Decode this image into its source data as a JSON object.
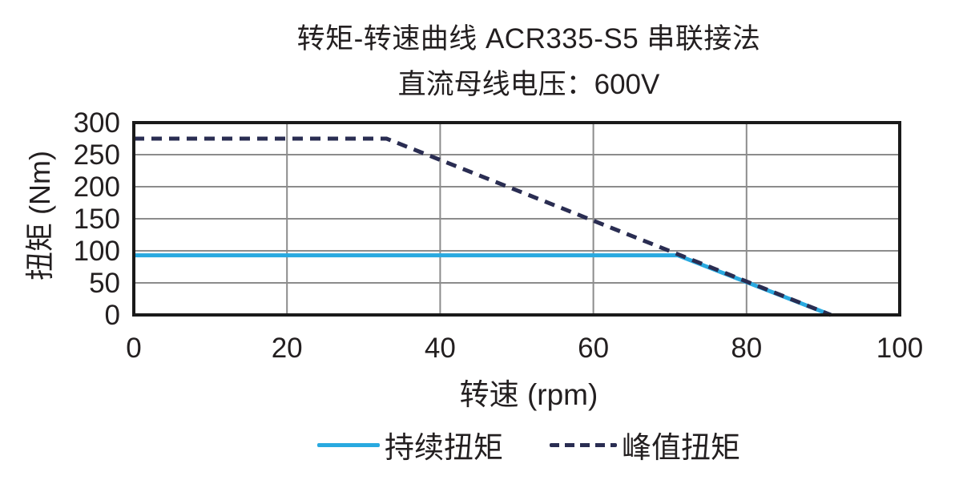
{
  "chart_data": {
    "type": "line",
    "title": "转矩-转速曲线 ACR335-S5 串联接法",
    "subtitle": "直流母线电压：600V",
    "xlabel": "转速 (rpm)",
    "ylabel": "扭矩 (Nm)",
    "xlim": [
      0,
      100
    ],
    "ylim": [
      0,
      300
    ],
    "x_ticks": [
      0,
      20,
      40,
      60,
      80,
      100
    ],
    "y_ticks": [
      0,
      50,
      100,
      150,
      200,
      250,
      300
    ],
    "grid": true,
    "legend_position": "bottom",
    "series": [
      {
        "name": "持续扭矩",
        "style": "solid",
        "color": "#29A9E0",
        "points": [
          [
            0,
            93
          ],
          [
            71,
            93
          ],
          [
            91,
            0
          ]
        ]
      },
      {
        "name": "峰值扭矩",
        "style": "dashed",
        "color": "#2A2D52",
        "points": [
          [
            0,
            275
          ],
          [
            33,
            275
          ],
          [
            91,
            0
          ]
        ]
      }
    ]
  },
  "colors": {
    "background": "#FFFFFF",
    "text": "#231F20",
    "grid": "#8C8C8C",
    "axis": "#1A1A1A"
  }
}
